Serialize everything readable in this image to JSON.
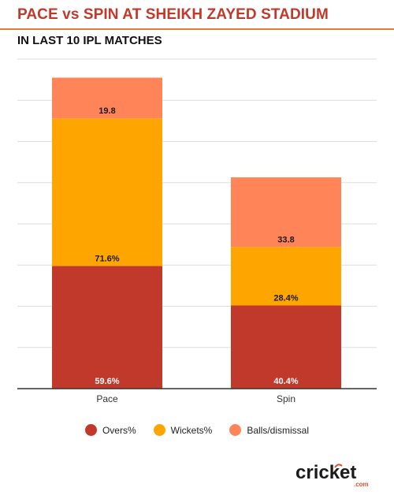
{
  "header": {
    "title": "PACE vs SPIN AT SHEIKH ZAYED STADIUM",
    "subtitle": "IN LAST 10 IPL MATCHES"
  },
  "chart_data": {
    "type": "bar",
    "stacked": true,
    "categories": [
      "Pace",
      "Spin"
    ],
    "series": [
      {
        "name": "Overs%",
        "values": [
          59.6,
          40.4
        ],
        "labels": [
          "59.6%",
          "40.4%"
        ],
        "color": "#c0392b"
      },
      {
        "name": "Wickets%",
        "values": [
          71.6,
          28.4
        ],
        "labels": [
          "71.6%",
          "28.4%"
        ],
        "color": "#ffa500"
      },
      {
        "name": "Balls/dismissal",
        "values": [
          19.8,
          33.8
        ],
        "labels": [
          "19.8",
          "33.8"
        ],
        "color": "#ff8559"
      }
    ],
    "ylim": [
      0,
      160
    ],
    "grid": true,
    "legend": "bottom"
  },
  "branding": {
    "logo_text": "cricket",
    "logo_sub": ".com"
  }
}
